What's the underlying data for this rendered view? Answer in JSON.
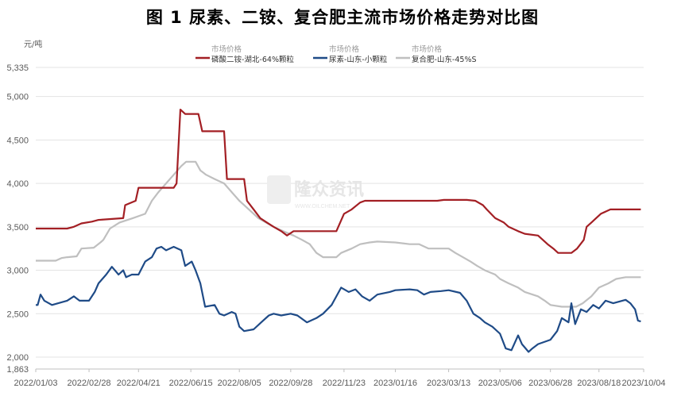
{
  "page_title": "图 1  尿素、二铵、复合肥主流市场价格走势对比图",
  "watermark": {
    "name": "隆众资讯",
    "sub": "WWW.OILCHEM.NET"
  },
  "chart_data": {
    "type": "line",
    "ylabel": "元/吨",
    "ylim": [
      1863,
      5335
    ],
    "y_ticks": [
      "1,863",
      "2,000",
      "2,500",
      "3,000",
      "3,500",
      "4,000",
      "4,500",
      "5,000",
      "5,335"
    ],
    "y_tick_values": [
      1863,
      2000,
      2500,
      3000,
      3500,
      4000,
      4500,
      5000,
      5335
    ],
    "x_ticks": [
      "2022/01/03",
      "2022/02/28",
      "2022/04/21",
      "2022/06/15",
      "2022/08/05",
      "2022/09/28",
      "2022/11/23",
      "2023/01/16",
      "2023/03/13",
      "2023/05/06",
      "2023/06/28",
      "2023/08/18",
      "2023/10/04"
    ],
    "grid": true,
    "legend_position": "top",
    "series": [
      {
        "legend_header": "市场价格",
        "name": "磷酸二铵-湖北-64%颗粒",
        "color": "#a31f24",
        "points": [
          [
            "2022/01/03",
            3480
          ],
          [
            "2022/02/05",
            3480
          ],
          [
            "2022/02/12",
            3500
          ],
          [
            "2022/02/20",
            3540
          ],
          [
            "2022/03/03",
            3560
          ],
          [
            "2022/03/10",
            3580
          ],
          [
            "2022/04/05",
            3600
          ],
          [
            "2022/04/07",
            3750
          ],
          [
            "2022/04/18",
            3800
          ],
          [
            "2022/04/21",
            3950
          ],
          [
            "2022/05/28",
            3950
          ],
          [
            "2022/05/31",
            4000
          ],
          [
            "2022/06/04",
            4850
          ],
          [
            "2022/06/09",
            4800
          ],
          [
            "2022/06/23",
            4800
          ],
          [
            "2022/06/27",
            4600
          ],
          [
            "2022/07/20",
            4600
          ],
          [
            "2022/07/23",
            4050
          ],
          [
            "2022/08/10",
            4050
          ],
          [
            "2022/08/13",
            3800
          ],
          [
            "2022/08/20",
            3700
          ],
          [
            "2022/08/27",
            3600
          ],
          [
            "2022/09/03",
            3550
          ],
          [
            "2022/09/10",
            3500
          ],
          [
            "2022/09/18",
            3450
          ],
          [
            "2022/09/24",
            3400
          ],
          [
            "2022/10/01",
            3450
          ],
          [
            "2022/11/15",
            3450
          ],
          [
            "2022/11/23",
            3650
          ],
          [
            "2022/12/01",
            3700
          ],
          [
            "2022/12/10",
            3780
          ],
          [
            "2022/12/15",
            3800
          ],
          [
            "2023/03/01",
            3800
          ],
          [
            "2023/03/08",
            3810
          ],
          [
            "2023/04/01",
            3810
          ],
          [
            "2023/04/10",
            3800
          ],
          [
            "2023/04/18",
            3750
          ],
          [
            "2023/04/22",
            3700
          ],
          [
            "2023/05/01",
            3600
          ],
          [
            "2023/05/10",
            3550
          ],
          [
            "2023/05/15",
            3500
          ],
          [
            "2023/05/25",
            3450
          ],
          [
            "2023/06/01",
            3420
          ],
          [
            "2023/06/15",
            3400
          ],
          [
            "2023/06/25",
            3300
          ],
          [
            "2023/07/01",
            3250
          ],
          [
            "2023/07/06",
            3200
          ],
          [
            "2023/07/20",
            3200
          ],
          [
            "2023/07/26",
            3250
          ],
          [
            "2023/08/02",
            3350
          ],
          [
            "2023/08/05",
            3500
          ],
          [
            "2023/08/10",
            3550
          ],
          [
            "2023/08/15",
            3600
          ],
          [
            "2023/08/20",
            3650
          ],
          [
            "2023/08/30",
            3700
          ],
          [
            "2023/10/01",
            3700
          ]
        ]
      },
      {
        "legend_header": "市场价格",
        "name": "尿素-山东-小颗粒",
        "color": "#1f4b87",
        "points": [
          [
            "2022/01/03",
            2600
          ],
          [
            "2022/01/05",
            2600
          ],
          [
            "2022/01/08",
            2720
          ],
          [
            "2022/01/12",
            2650
          ],
          [
            "2022/01/20",
            2600
          ],
          [
            "2022/02/05",
            2650
          ],
          [
            "2022/02/12",
            2700
          ],
          [
            "2022/02/18",
            2650
          ],
          [
            "2022/02/28",
            2650
          ],
          [
            "2022/03/06",
            2750
          ],
          [
            "2022/03/10",
            2850
          ],
          [
            "2022/03/18",
            2950
          ],
          [
            "2022/03/24",
            3040
          ],
          [
            "2022/03/31",
            2950
          ],
          [
            "2022/04/05",
            3000
          ],
          [
            "2022/04/08",
            2920
          ],
          [
            "2022/04/14",
            2950
          ],
          [
            "2022/04/21",
            2950
          ],
          [
            "2022/04/28",
            3100
          ],
          [
            "2022/05/05",
            3150
          ],
          [
            "2022/05/10",
            3250
          ],
          [
            "2022/05/15",
            3270
          ],
          [
            "2022/05/20",
            3230
          ],
          [
            "2022/05/28",
            3270
          ],
          [
            "2022/06/05",
            3230
          ],
          [
            "2022/06/09",
            3050
          ],
          [
            "2022/06/16",
            3100
          ],
          [
            "2022/06/20",
            3000
          ],
          [
            "2022/06/25",
            2850
          ],
          [
            "2022/06/30",
            2580
          ],
          [
            "2022/07/10",
            2600
          ],
          [
            "2022/07/15",
            2500
          ],
          [
            "2022/07/20",
            2480
          ],
          [
            "2022/07/28",
            2520
          ],
          [
            "2022/08/01",
            2500
          ],
          [
            "2022/08/05",
            2350
          ],
          [
            "2022/08/10",
            2300
          ],
          [
            "2022/08/20",
            2320
          ],
          [
            "2022/08/28",
            2400
          ],
          [
            "2022/09/05",
            2480
          ],
          [
            "2022/09/10",
            2500
          ],
          [
            "2022/09/18",
            2480
          ],
          [
            "2022/09/28",
            2500
          ],
          [
            "2022/10/05",
            2480
          ],
          [
            "2022/10/15",
            2400
          ],
          [
            "2022/10/25",
            2450
          ],
          [
            "2022/11/01",
            2500
          ],
          [
            "2022/11/10",
            2600
          ],
          [
            "2022/11/15",
            2700
          ],
          [
            "2022/11/20",
            2800
          ],
          [
            "2022/11/28",
            2750
          ],
          [
            "2022/12/05",
            2780
          ],
          [
            "2022/12/12",
            2700
          ],
          [
            "2022/12/20",
            2650
          ],
          [
            "2022/12/28",
            2720
          ],
          [
            "2023/01/10",
            2750
          ],
          [
            "2023/01/16",
            2770
          ],
          [
            "2023/01/31",
            2780
          ],
          [
            "2023/02/08",
            2770
          ],
          [
            "2023/02/15",
            2720
          ],
          [
            "2023/02/22",
            2750
          ],
          [
            "2023/03/05",
            2760
          ],
          [
            "2023/03/13",
            2770
          ],
          [
            "2023/03/25",
            2740
          ],
          [
            "2023/04/01",
            2650
          ],
          [
            "2023/04/08",
            2500
          ],
          [
            "2023/04/15",
            2450
          ],
          [
            "2023/04/20",
            2400
          ],
          [
            "2023/04/28",
            2350
          ],
          [
            "2023/05/06",
            2270
          ],
          [
            "2023/05/12",
            2100
          ],
          [
            "2023/05/18",
            2080
          ],
          [
            "2023/05/25",
            2250
          ],
          [
            "2023/05/29",
            2150
          ],
          [
            "2023/06/02",
            2100
          ],
          [
            "2023/06/05",
            2060
          ],
          [
            "2023/06/09",
            2100
          ],
          [
            "2023/06/15",
            2150
          ],
          [
            "2023/06/28",
            2200
          ],
          [
            "2023/07/05",
            2300
          ],
          [
            "2023/07/10",
            2450
          ],
          [
            "2023/07/17",
            2400
          ],
          [
            "2023/07/20",
            2620
          ],
          [
            "2023/07/24",
            2380
          ],
          [
            "2023/07/30",
            2550
          ],
          [
            "2023/08/05",
            2520
          ],
          [
            "2023/08/12",
            2600
          ],
          [
            "2023/08/18",
            2560
          ],
          [
            "2023/08/25",
            2650
          ],
          [
            "2023/09/02",
            2620
          ],
          [
            "2023/09/15",
            2660
          ],
          [
            "2023/09/20",
            2620
          ],
          [
            "2023/09/25",
            2550
          ],
          [
            "2023/09/28",
            2420
          ],
          [
            "2023/10/01",
            2410
          ]
        ]
      },
      {
        "legend_header": "市场价格",
        "name": "复合肥-山东-45%S",
        "color": "#bfbfbf",
        "points": [
          [
            "2022/01/03",
            3110
          ],
          [
            "2022/01/24",
            3110
          ],
          [
            "2022/01/30",
            3140
          ],
          [
            "2022/02/05",
            3150
          ],
          [
            "2022/02/15",
            3160
          ],
          [
            "2022/02/20",
            3250
          ],
          [
            "2022/03/05",
            3260
          ],
          [
            "2022/03/12",
            3320
          ],
          [
            "2022/03/15",
            3350
          ],
          [
            "2022/03/22",
            3480
          ],
          [
            "2022/04/01",
            3550
          ],
          [
            "2022/04/15",
            3600
          ],
          [
            "2022/04/28",
            3650
          ],
          [
            "2022/05/05",
            3800
          ],
          [
            "2022/05/12",
            3900
          ],
          [
            "2022/05/20",
            4000
          ],
          [
            "2022/05/28",
            4100
          ],
          [
            "2022/06/05",
            4200
          ],
          [
            "2022/06/10",
            4250
          ],
          [
            "2022/06/20",
            4250
          ],
          [
            "2022/06/25",
            4150
          ],
          [
            "2022/07/01",
            4100
          ],
          [
            "2022/07/10",
            4050
          ],
          [
            "2022/07/20",
            4000
          ],
          [
            "2022/07/28",
            3900
          ],
          [
            "2022/08/05",
            3800
          ],
          [
            "2022/08/15",
            3700
          ],
          [
            "2022/08/25",
            3600
          ],
          [
            "2022/09/02",
            3550
          ],
          [
            "2022/09/10",
            3500
          ],
          [
            "2022/09/20",
            3450
          ],
          [
            "2022/10/01",
            3400
          ],
          [
            "2022/10/10",
            3350
          ],
          [
            "2022/10/18",
            3300
          ],
          [
            "2022/10/25",
            3200
          ],
          [
            "2022/11/01",
            3150
          ],
          [
            "2022/11/15",
            3150
          ],
          [
            "2022/11/20",
            3200
          ],
          [
            "2022/12/01",
            3250
          ],
          [
            "2022/12/10",
            3300
          ],
          [
            "2022/12/20",
            3320
          ],
          [
            "2022/12/28",
            3330
          ],
          [
            "2023/01/16",
            3320
          ],
          [
            "2023/01/31",
            3300
          ],
          [
            "2023/02/10",
            3300
          ],
          [
            "2023/02/20",
            3250
          ],
          [
            "2023/03/13",
            3250
          ],
          [
            "2023/03/20",
            3200
          ],
          [
            "2023/03/28",
            3150
          ],
          [
            "2023/04/05",
            3100
          ],
          [
            "2023/04/12",
            3050
          ],
          [
            "2023/04/20",
            3000
          ],
          [
            "2023/05/01",
            2950
          ],
          [
            "2023/05/06",
            2900
          ],
          [
            "2023/05/15",
            2850
          ],
          [
            "2023/05/25",
            2800
          ],
          [
            "2023/06/01",
            2750
          ],
          [
            "2023/06/15",
            2700
          ],
          [
            "2023/06/22",
            2650
          ],
          [
            "2023/06/28",
            2600
          ],
          [
            "2023/07/10",
            2580
          ],
          [
            "2023/07/25",
            2580
          ],
          [
            "2023/08/01",
            2620
          ],
          [
            "2023/08/10",
            2700
          ],
          [
            "2023/08/18",
            2800
          ],
          [
            "2023/08/28",
            2850
          ],
          [
            "2023/09/05",
            2900
          ],
          [
            "2023/09/15",
            2920
          ],
          [
            "2023/10/01",
            2920
          ]
        ]
      }
    ]
  }
}
